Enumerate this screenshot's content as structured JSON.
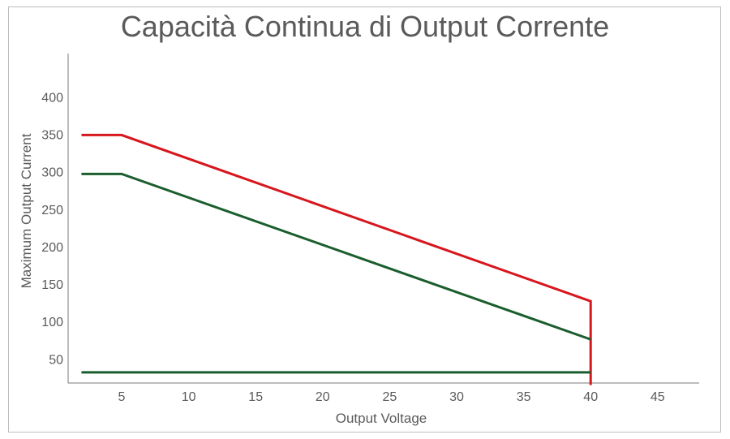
{
  "chart_data": {
    "type": "line",
    "title": "Capacità Continua di Output Corrente",
    "xlabel": "Output Voltage",
    "ylabel": "Maximum Output Current",
    "xlim": [
      0,
      48
    ],
    "ylim": [
      15,
      450
    ],
    "x_ticks": [
      5,
      10,
      15,
      20,
      25,
      30,
      35,
      40,
      45
    ],
    "y_ticks": [
      50,
      100,
      150,
      200,
      250,
      300,
      350,
      400
    ],
    "grid": false,
    "series": [
      {
        "color": "#d7161d",
        "x": [
          2,
          5,
          40,
          40
        ],
        "y": [
          349,
          349,
          127,
          15
        ]
      },
      {
        "color": "#1b5e2e",
        "x": [
          2,
          5,
          40
        ],
        "y": [
          297,
          297,
          76
        ]
      },
      {
        "color": "#1b5e2e",
        "x": [
          2,
          40
        ],
        "y": [
          32,
          32
        ]
      }
    ]
  }
}
